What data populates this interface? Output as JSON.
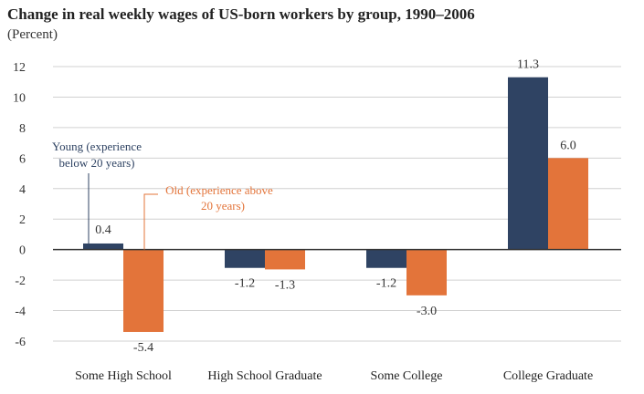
{
  "chart_data": {
    "type": "bar",
    "title": "Change in real weekly wages of US-born workers by group, 1990–2006",
    "subtitle": "(Percent)",
    "categories": [
      "Some High School",
      "High School Graduate",
      "Some College",
      "College Graduate"
    ],
    "series": [
      {
        "name": "Young (experience below 20 years)",
        "values": [
          0.4,
          -1.2,
          -1.2,
          11.3
        ],
        "labels": [
          "0.4",
          "-1.2",
          "-1.2",
          "11.3"
        ],
        "color": "#2f4363"
      },
      {
        "name": "Old (experience above 20 years)",
        "values": [
          -5.4,
          -1.3,
          -3.0,
          6.0
        ],
        "labels": [
          "-5.4",
          "-1.3",
          "-3.0",
          "6.0"
        ],
        "color": "#e3743a"
      }
    ],
    "ylim": [
      -6,
      12
    ],
    "yticks": [
      -6,
      -4,
      -2,
      0,
      2,
      4,
      6,
      8,
      10,
      12
    ],
    "grid": true,
    "annotations": [
      {
        "series": 0,
        "lines": [
          "Young (experience",
          "below 20 years)"
        ],
        "color": "#2f4363"
      },
      {
        "series": 1,
        "lines": [
          "Old (experience above",
          "20 years)"
        ],
        "color": "#e3743a"
      }
    ]
  }
}
